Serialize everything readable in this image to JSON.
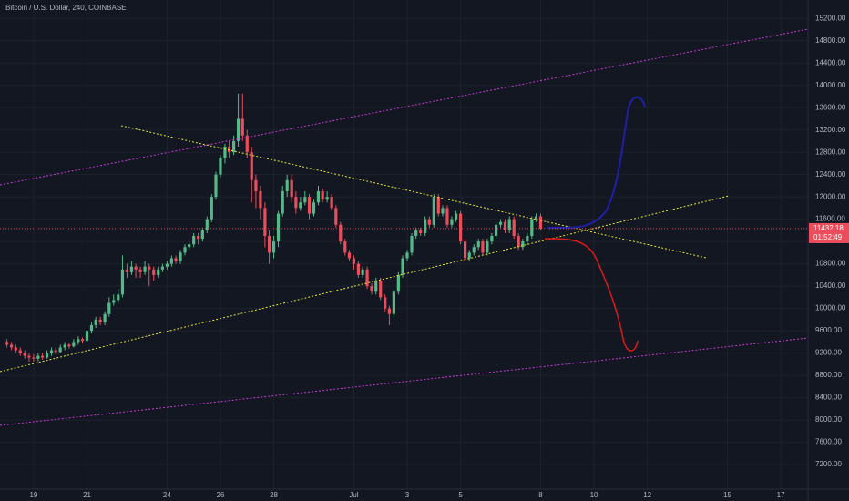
{
  "chart_data": {
    "type": "candlestick",
    "title": "Bitcoin / U.S. Dollar, 240, COINBASE",
    "up_color": "#53b987",
    "down_color": "#eb4d5c",
    "grid": true,
    "xlim": [
      17.74,
      48.02
    ],
    "ylim": [
      6760,
      15530
    ],
    "xticks": [
      19,
      21,
      24,
      26,
      28,
      {
        "value": 31,
        "label": "Jul"
      },
      {
        "value": 33,
        "label": "3"
      },
      {
        "value": 35,
        "label": "5"
      },
      {
        "value": 38,
        "label": "8"
      },
      {
        "value": 40,
        "label": "10"
      },
      {
        "value": 42,
        "label": "12"
      },
      {
        "value": 45,
        "label": "15"
      },
      {
        "value": 47,
        "label": "17"
      }
    ],
    "yticks": [
      {
        "value": 7200,
        "label": "7200.00"
      },
      {
        "value": 7600,
        "label": "7600.00"
      },
      {
        "value": 8000,
        "label": "8000.00"
      },
      {
        "value": 8400,
        "label": "8400.00"
      },
      {
        "value": 8800,
        "label": "8800.00"
      },
      {
        "value": 9200,
        "label": "9200.00"
      },
      {
        "value": 9600,
        "label": "9600.00"
      },
      {
        "value": 10000,
        "label": "10000.00"
      },
      {
        "value": 10400,
        "label": "10400.00"
      },
      {
        "value": 10800,
        "label": "10800.00"
      },
      {
        "value": 11200,
        "label": "11200.00"
      },
      {
        "value": 11600,
        "label": "11600.00"
      },
      {
        "value": 12000,
        "label": "12000.00"
      },
      {
        "value": 12400,
        "label": "12400.00"
      },
      {
        "value": 12800,
        "label": "12800.00"
      },
      {
        "value": 13200,
        "label": "13200.00"
      },
      {
        "value": 13600,
        "label": "13600.00"
      },
      {
        "value": 14000,
        "label": "14000.00"
      },
      {
        "value": 14400,
        "label": "14400.00"
      },
      {
        "value": 14800,
        "label": "14800.00"
      },
      {
        "value": 15200,
        "label": "15200.00"
      }
    ],
    "last_price": 11432.18,
    "countdown": "01:52:49",
    "x": [
      18,
      18.17,
      18.33,
      18.5,
      18.67,
      18.83,
      19,
      19.17,
      19.33,
      19.5,
      19.67,
      19.83,
      20,
      20.17,
      20.33,
      20.5,
      20.67,
      20.83,
      21,
      21.17,
      21.33,
      21.5,
      21.67,
      21.83,
      22,
      22.17,
      22.33,
      22.5,
      22.67,
      22.83,
      23,
      23.17,
      23.33,
      23.5,
      23.67,
      23.83,
      24,
      24.17,
      24.33,
      24.5,
      24.67,
      24.83,
      25,
      25.17,
      25.33,
      25.5,
      25.67,
      25.83,
      26,
      26.17,
      26.33,
      26.5,
      26.67,
      26.83,
      27,
      27.17,
      27.33,
      27.5,
      27.67,
      27.83,
      28,
      28.17,
      28.33,
      28.5,
      28.67,
      28.83,
      29,
      29.17,
      29.33,
      29.5,
      29.67,
      29.83,
      30,
      30.17,
      30.33,
      30.5,
      30.67,
      30.83,
      31,
      31.17,
      31.33,
      31.5,
      31.67,
      31.83,
      32,
      32.17,
      32.33,
      32.5,
      32.67,
      32.83,
      33,
      33.17,
      33.33,
      33.5,
      33.67,
      33.83,
      34,
      34.17,
      34.33,
      34.5,
      34.67,
      34.83,
      35,
      35.17,
      35.33,
      35.5,
      35.67,
      35.83,
      36,
      36.17,
      36.33,
      36.5,
      36.67,
      36.83,
      37,
      37.17,
      37.33,
      37.5,
      37.67,
      37.83,
      38
    ],
    "ohlc": [
      [
        9400,
        9450,
        9300,
        9350
      ],
      [
        9350,
        9400,
        9250,
        9300
      ],
      [
        9300,
        9350,
        9200,
        9250
      ],
      [
        9250,
        9300,
        9150,
        9200
      ],
      [
        9200,
        9250,
        9100,
        9150
      ],
      [
        9150,
        9200,
        9050,
        9120
      ],
      [
        9120,
        9180,
        9050,
        9100
      ],
      [
        9100,
        9200,
        9050,
        9150
      ],
      [
        9150,
        9200,
        9080,
        9120
      ],
      [
        9120,
        9250,
        9100,
        9200
      ],
      [
        9200,
        9300,
        9150,
        9250
      ],
      [
        9250,
        9300,
        9180,
        9220
      ],
      [
        9220,
        9350,
        9200,
        9300
      ],
      [
        9300,
        9400,
        9250,
        9350
      ],
      [
        9350,
        9380,
        9280,
        9320
      ],
      [
        9320,
        9450,
        9300,
        9400
      ],
      [
        9400,
        9500,
        9350,
        9450
      ],
      [
        9450,
        9480,
        9380,
        9420
      ],
      [
        9420,
        9650,
        9400,
        9600
      ],
      [
        9600,
        9750,
        9550,
        9700
      ],
      [
        9700,
        9850,
        9650,
        9800
      ],
      [
        9800,
        9850,
        9700,
        9750
      ],
      [
        9750,
        9950,
        9700,
        9900
      ],
      [
        9900,
        10200,
        9850,
        10100
      ],
      [
        10100,
        10250,
        10050,
        10150
      ],
      [
        10150,
        10350,
        10100,
        10250
      ],
      [
        10250,
        10950,
        10200,
        10700
      ],
      [
        10700,
        10800,
        10550,
        10650
      ],
      [
        10650,
        10850,
        10600,
        10750
      ],
      [
        10750,
        10800,
        10550,
        10700
      ],
      [
        10700,
        10750,
        10550,
        10650
      ],
      [
        10650,
        10850,
        10600,
        10750
      ],
      [
        10750,
        10800,
        10400,
        10700
      ],
      [
        10700,
        10750,
        10500,
        10600
      ],
      [
        10600,
        10750,
        10550,
        10700
      ],
      [
        10700,
        10800,
        10650,
        10750
      ],
      [
        10750,
        10850,
        10700,
        10800
      ],
      [
        10800,
        10950,
        10750,
        10900
      ],
      [
        10900,
        10950,
        10800,
        10850
      ],
      [
        10850,
        11050,
        10800,
        11000
      ],
      [
        11000,
        11150,
        10950,
        11100
      ],
      [
        11100,
        11200,
        11050,
        11150
      ],
      [
        11150,
        11350,
        11100,
        11300
      ],
      [
        11300,
        11350,
        11150,
        11250
      ],
      [
        11250,
        11450,
        11200,
        11400
      ],
      [
        11400,
        11650,
        11350,
        11600
      ],
      [
        11600,
        12050,
        11550,
        12000
      ],
      [
        12000,
        12450,
        11950,
        12400
      ],
      [
        12400,
        12750,
        12350,
        12700
      ],
      [
        12700,
        12950,
        12600,
        12900
      ],
      [
        12900,
        13000,
        12700,
        12800
      ],
      [
        12800,
        13100,
        12750,
        13000
      ],
      [
        13000,
        13850,
        12900,
        13400
      ],
      [
        13400,
        13850,
        13000,
        13100
      ],
      [
        13100,
        13200,
        12700,
        12800
      ],
      [
        12800,
        12900,
        11900,
        12300
      ],
      [
        12300,
        12400,
        11800,
        12100
      ],
      [
        12100,
        12200,
        11600,
        11800
      ],
      [
        11800,
        11900,
        11100,
        11300
      ],
      [
        11300,
        11400,
        10800,
        11000
      ],
      [
        11000,
        11300,
        10900,
        11200
      ],
      [
        11200,
        11750,
        11100,
        11700
      ],
      [
        11700,
        12200,
        11650,
        12100
      ],
      [
        12100,
        12400,
        12000,
        12300
      ],
      [
        12300,
        12400,
        11900,
        12000
      ],
      [
        12000,
        12100,
        11700,
        11800
      ],
      [
        11800,
        12000,
        11750,
        11900
      ],
      [
        11900,
        12100,
        11850,
        12000
      ],
      [
        12000,
        12050,
        11600,
        11700
      ],
      [
        11700,
        11950,
        11650,
        11900
      ],
      [
        11900,
        12200,
        11850,
        12100
      ],
      [
        12100,
        12150,
        11900,
        11950
      ],
      [
        11950,
        12100,
        11900,
        12000
      ],
      [
        12000,
        12050,
        11750,
        11800
      ],
      [
        11800,
        11850,
        11450,
        11500
      ],
      [
        11500,
        11550,
        11150,
        11200
      ],
      [
        11200,
        11250,
        10950,
        11000
      ],
      [
        11000,
        11050,
        10850,
        10900
      ],
      [
        10900,
        10950,
        10700,
        10800
      ],
      [
        10800,
        10850,
        10550,
        10600
      ],
      [
        10600,
        10750,
        10550,
        10700
      ],
      [
        10700,
        10750,
        10350,
        10400
      ],
      [
        10400,
        10450,
        10250,
        10300
      ],
      [
        10300,
        10550,
        10250,
        10500
      ],
      [
        10500,
        10550,
        10150,
        10200
      ],
      [
        10200,
        10250,
        9950,
        10000
      ],
      [
        10000,
        10050,
        9700,
        9900
      ],
      [
        9900,
        10350,
        9850,
        10300
      ],
      [
        10300,
        10650,
        10250,
        10600
      ],
      [
        10600,
        10950,
        10550,
        10900
      ],
      [
        10900,
        11050,
        10850,
        11000
      ],
      [
        11000,
        11350,
        10950,
        11300
      ],
      [
        11300,
        11450,
        11250,
        11400
      ],
      [
        11400,
        11450,
        11300,
        11350
      ],
      [
        11350,
        11650,
        11300,
        11600
      ],
      [
        11600,
        11650,
        11450,
        11500
      ],
      [
        11500,
        12050,
        11450,
        12000
      ],
      [
        12000,
        12050,
        11650,
        11700
      ],
      [
        11700,
        11850,
        11650,
        11800
      ],
      [
        11800,
        11850,
        11450,
        11500
      ],
      [
        11500,
        11650,
        11450,
        11600
      ],
      [
        11600,
        11750,
        11550,
        11700
      ],
      [
        11700,
        11750,
        11150,
        11200
      ],
      [
        11200,
        11250,
        10850,
        10900
      ],
      [
        10900,
        11050,
        10850,
        11000
      ],
      [
        11000,
        11150,
        10950,
        11100
      ],
      [
        11100,
        11250,
        11050,
        11200
      ],
      [
        11200,
        11250,
        10950,
        11000
      ],
      [
        11000,
        11250,
        10950,
        11200
      ],
      [
        11200,
        11350,
        11150,
        11300
      ],
      [
        11300,
        11550,
        11250,
        11500
      ],
      [
        11500,
        11600,
        11450,
        11550
      ],
      [
        11550,
        11600,
        11350,
        11400
      ],
      [
        11400,
        11650,
        11350,
        11600
      ],
      [
        11600,
        11650,
        11250,
        11300
      ],
      [
        11300,
        11350,
        11050,
        11100
      ],
      [
        11100,
        11250,
        11050,
        11200
      ],
      [
        11200,
        11350,
        11150,
        11300
      ],
      [
        11300,
        11650,
        11250,
        11600
      ],
      [
        11600,
        11700,
        11550,
        11650
      ],
      [
        11650,
        11700,
        11400,
        11432
      ]
    ]
  }
}
